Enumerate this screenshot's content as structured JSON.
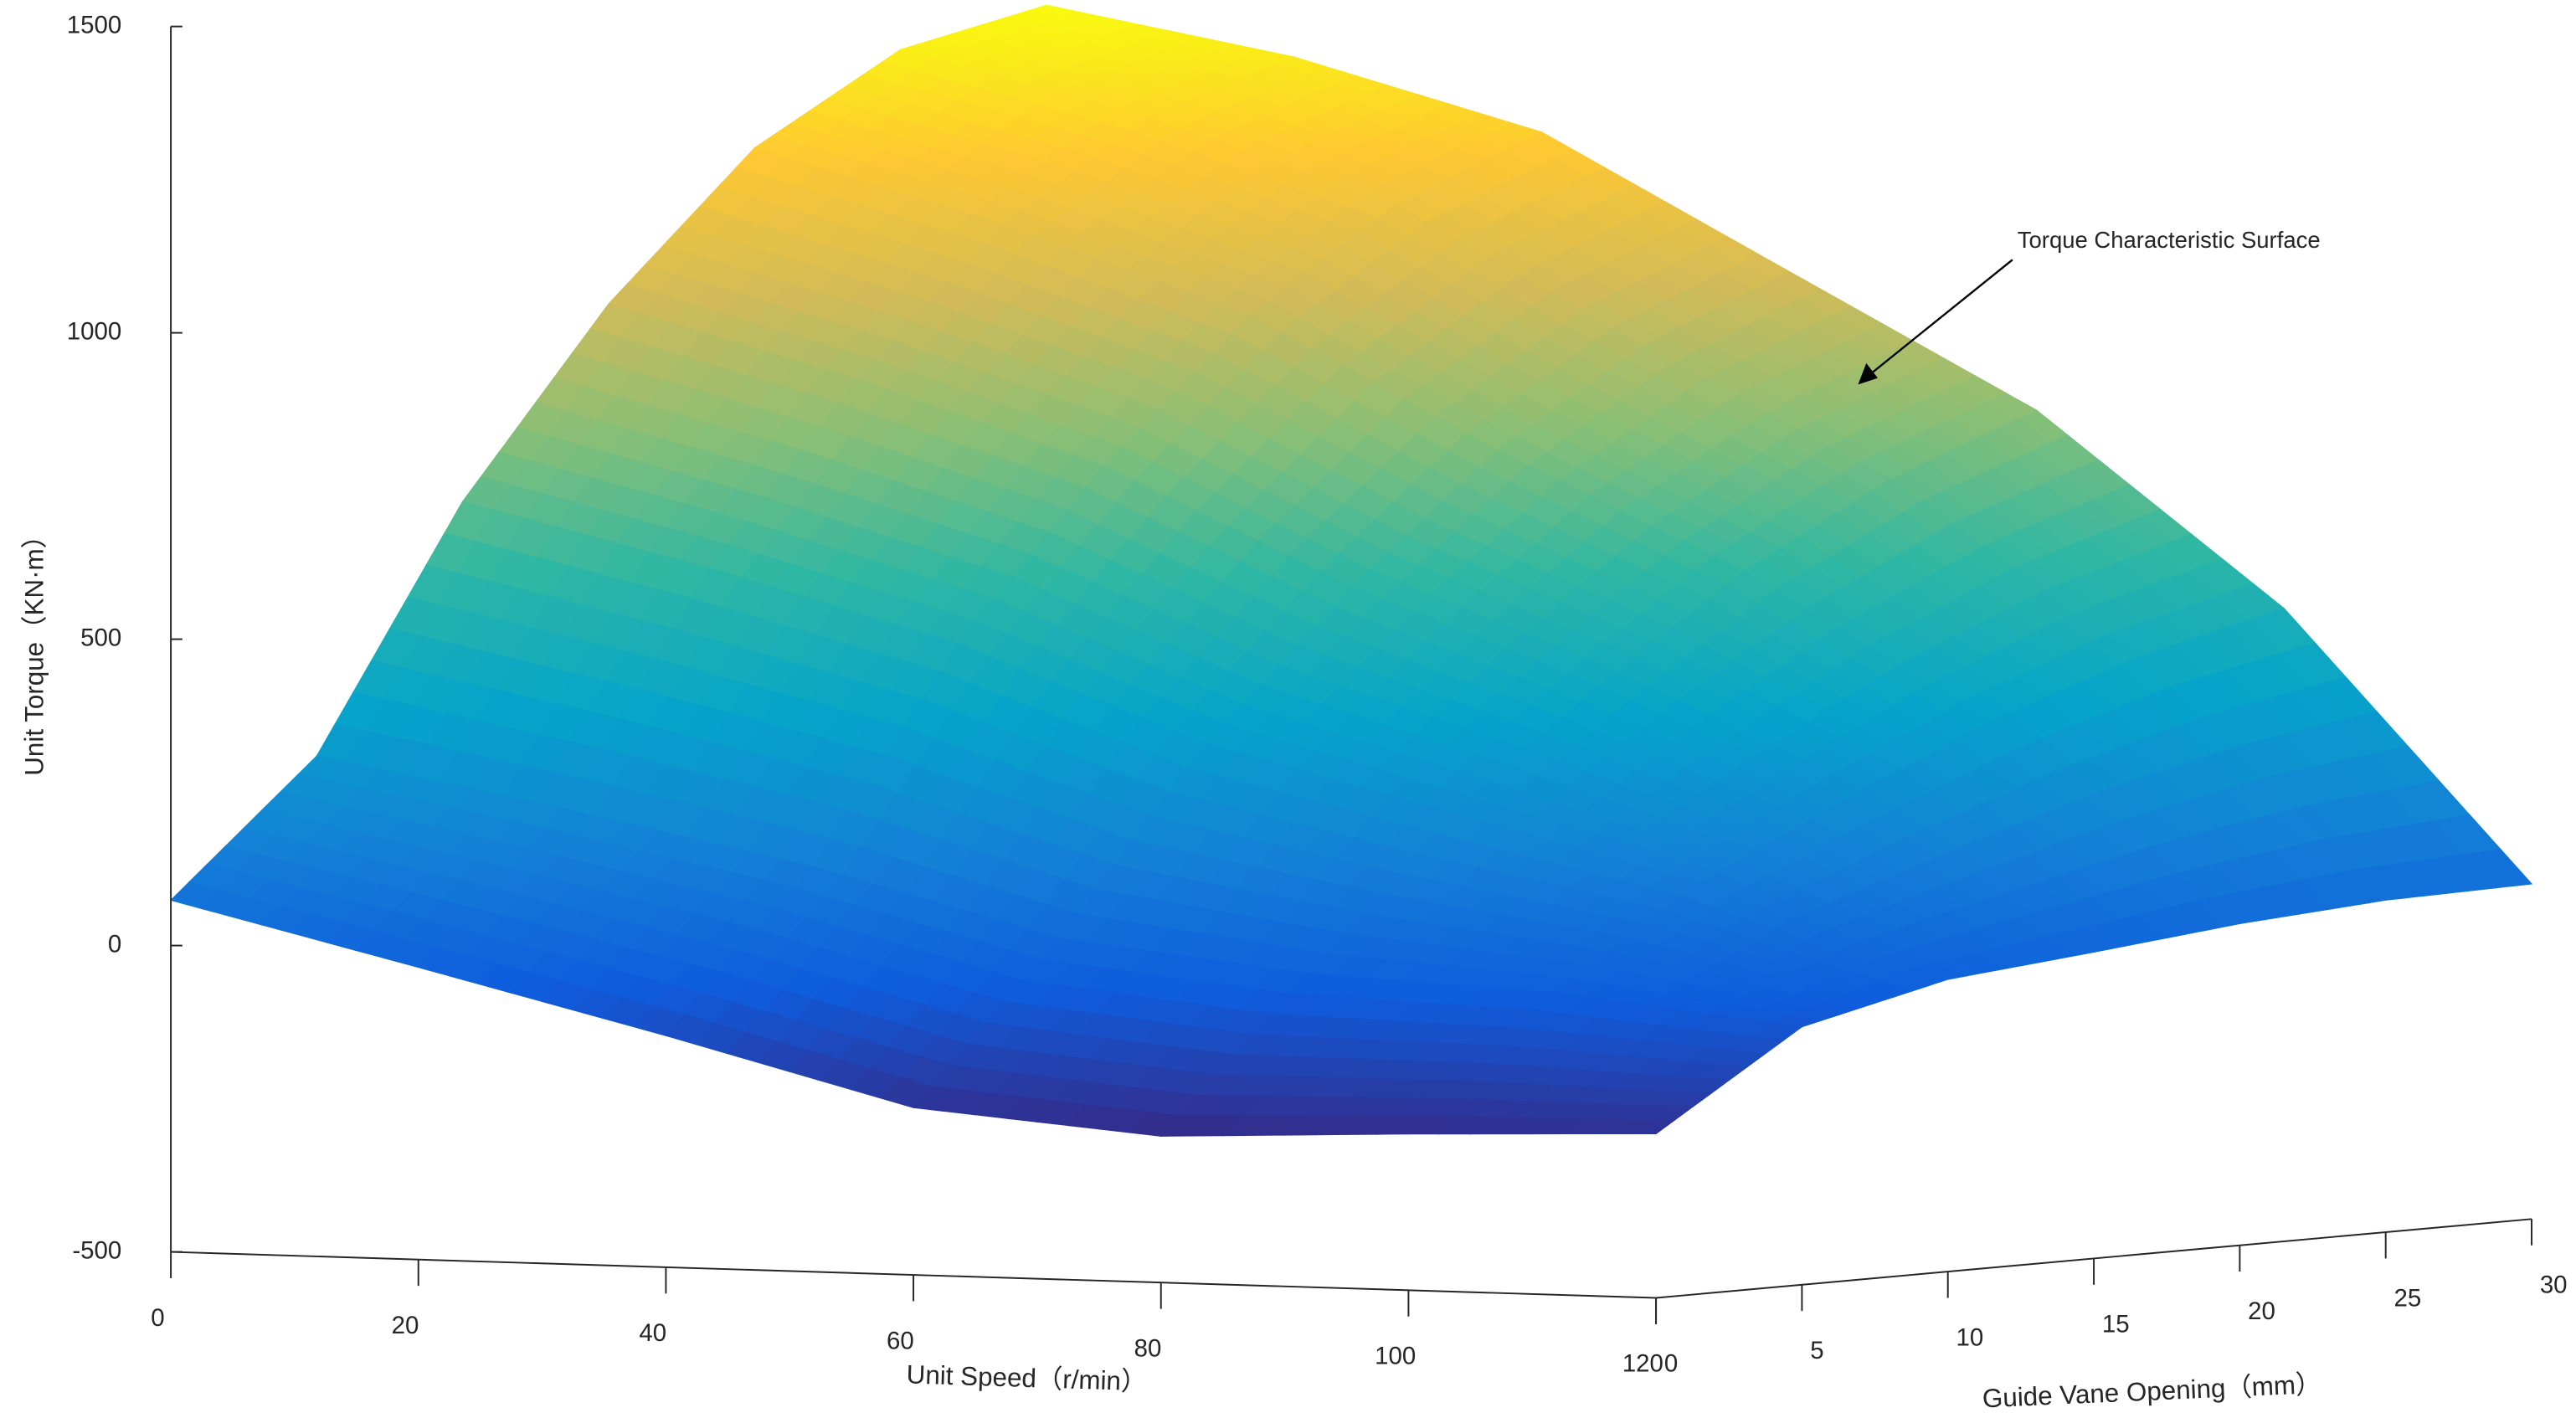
{
  "chart_data": {
    "type": "surface",
    "xlabel": "Unit Speed（r/min）",
    "ylabel": "Guide Vane Opening（mm）",
    "zlabel": "Unit Torque（KN·m）",
    "annotation": "Torque Characteristic Surface",
    "x": [
      0,
      20,
      40,
      60,
      80,
      100,
      120
    ],
    "y": [
      0,
      5,
      10,
      15,
      20,
      25,
      30
    ],
    "z": [
      [
        74,
        -23,
        -122,
        -227,
        -261,
        -245,
        -232
      ],
      [
        288,
        214,
        133,
        28,
        -17,
        -36,
        -79
      ],
      [
        682,
        585,
        475,
        325,
        223,
        122,
        -23
      ],
      [
        983,
        873,
        744,
        559,
        410,
        237,
        0
      ],
      [
        1216,
        1105,
        968,
        760,
        575,
        343,
        25
      ],
      [
        1355,
        1257,
        1128,
        909,
        704,
        426,
        42
      ],
      [
        1406,
        1334,
        1224,
        1009,
        795,
        484,
        47
      ]
    ],
    "xlim": [
      0,
      120
    ],
    "xticks": [
      0,
      20,
      40,
      60,
      80,
      100,
      120
    ],
    "ylim": [
      0,
      30
    ],
    "yticks": [
      0,
      5,
      10,
      15,
      20,
      25,
      30
    ],
    "zlim": [
      -500,
      1500
    ],
    "zticks": [
      -500,
      0,
      500,
      1000,
      1500
    ],
    "grid": false,
    "colormap": [
      "#352a87",
      "#0f5cdd",
      "#1481d6",
      "#06a4ca",
      "#2eb7a4",
      "#87bf77",
      "#d1bb59",
      "#fec832",
      "#f9fb0e"
    ]
  }
}
